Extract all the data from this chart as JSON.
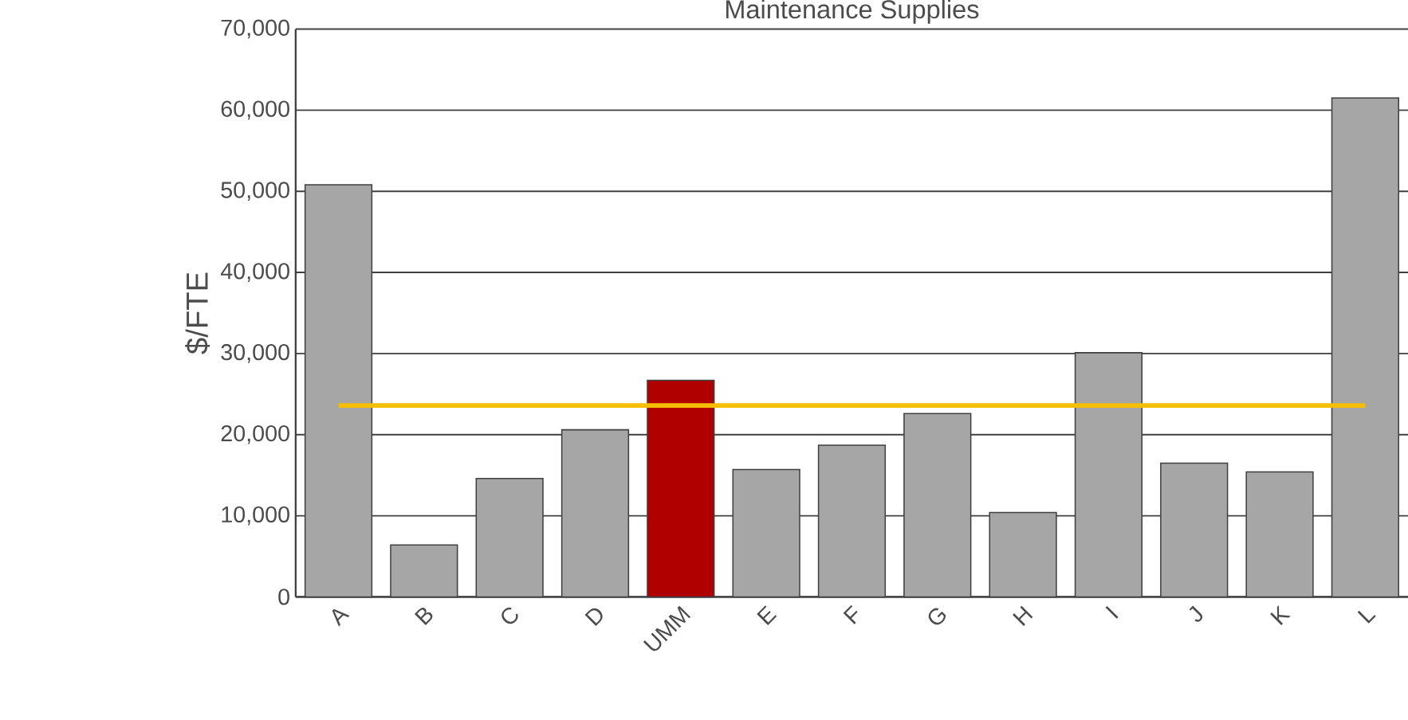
{
  "chart_data": {
    "type": "bar",
    "title": "Maintenance Supplies",
    "ylabel": "$/FTE",
    "categories": [
      "A",
      "B",
      "C",
      "D",
      "UMM",
      "E",
      "F",
      "G",
      "H",
      "I",
      "J",
      "K",
      "L"
    ],
    "values": [
      50800,
      6400,
      14600,
      20600,
      26700,
      15700,
      18700,
      22600,
      10400,
      30100,
      16500,
      15400,
      61500
    ],
    "colors": [
      "#a6a6a6",
      "#a6a6a6",
      "#a6a6a6",
      "#a6a6a6",
      "#b00000",
      "#a6a6a6",
      "#a6a6a6",
      "#a6a6a6",
      "#a6a6a6",
      "#a6a6a6",
      "#a6a6a6",
      "#a6a6a6",
      "#a6a6a6"
    ],
    "ylim": [
      0,
      70000
    ],
    "yticks": [
      0,
      {
        "value": 10000,
        "label": "10,000"
      },
      {
        "value": 20000,
        "label": "20,000"
      },
      {
        "value": 30000,
        "label": "30,000"
      },
      {
        "value": 40000,
        "label": "40,000"
      },
      {
        "value": 50000,
        "label": "50,000"
      },
      {
        "value": 60000,
        "label": "60,000"
      },
      {
        "value": 70000,
        "label": "70,000"
      }
    ],
    "grid": "y",
    "ref_lines": [
      {
        "axis": "y",
        "value": 23600,
        "color": "#f5be00"
      }
    ]
  }
}
